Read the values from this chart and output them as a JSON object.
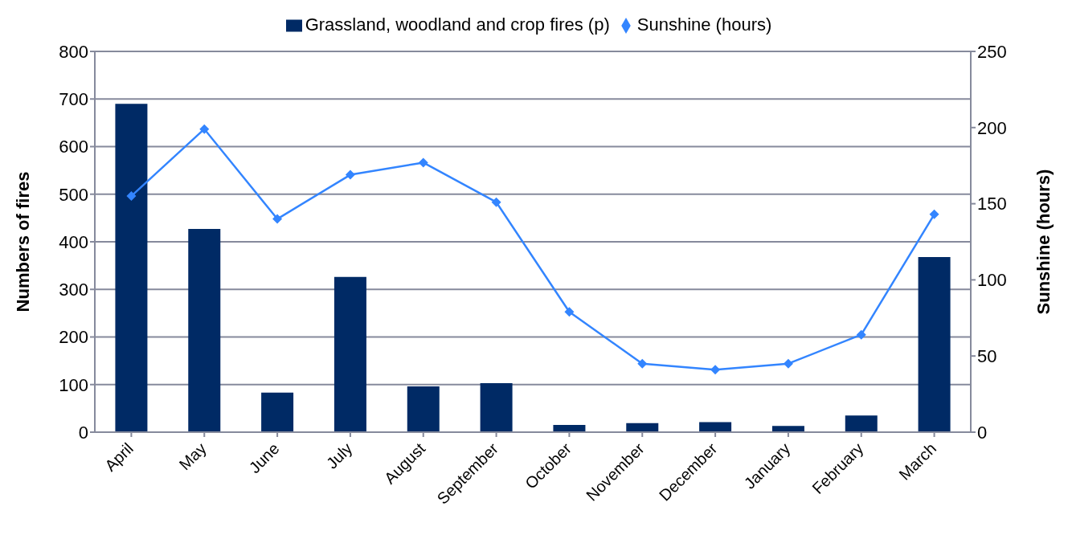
{
  "chart_data": {
    "type": "bar",
    "categories": [
      "April",
      "May",
      "June",
      "July",
      "August",
      "September",
      "October",
      "November",
      "December",
      "January",
      "February",
      "March"
    ],
    "series": [
      {
        "name": "Grassland, woodland and crop fires (p)",
        "color": "#002a65",
        "values": [
          690,
          427,
          83,
          326,
          96,
          103,
          15,
          19,
          21,
          13,
          35,
          368
        ]
      },
      {
        "name": "Sunshine (hours)",
        "type": "line",
        "axis": "y2",
        "color": "#3385ff",
        "marker": "diamond",
        "values": [
          155,
          199,
          140,
          169,
          177,
          151,
          79,
          45,
          41,
          45,
          64,
          143
        ]
      }
    ],
    "ylabel": "Numbers of fires",
    "y2label": "Sunshine (hours)",
    "ylim": [
      0,
      800
    ],
    "yticks": [
      0,
      100,
      200,
      300,
      400,
      500,
      600,
      700,
      800
    ],
    "y2lim": [
      0,
      250
    ],
    "y2ticks": [
      0,
      50,
      100,
      150,
      200,
      250
    ],
    "grid": "y",
    "legend": "top"
  }
}
